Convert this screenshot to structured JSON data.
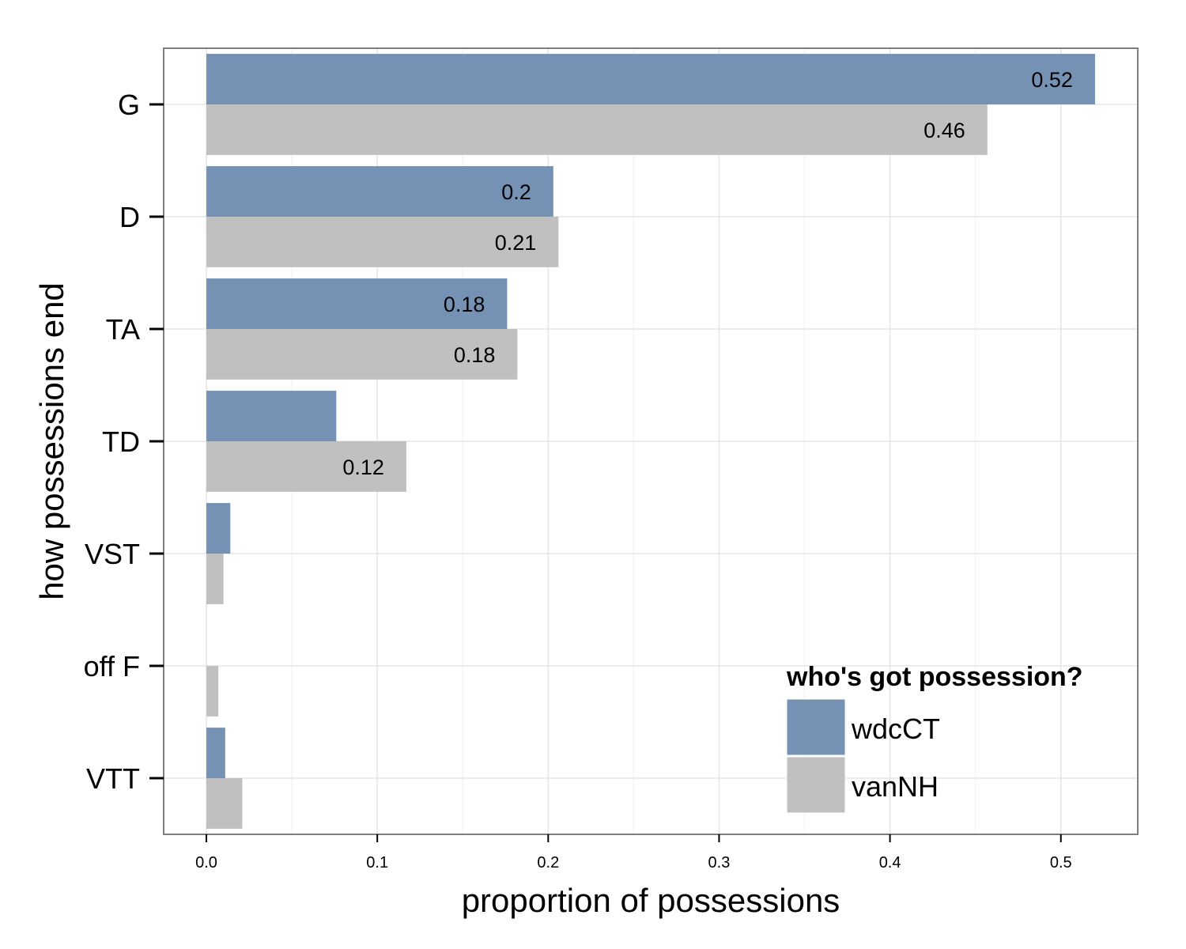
{
  "chart_data": {
    "type": "bar",
    "orientation": "horizontal",
    "categories": [
      "G",
      "D",
      "TA",
      "TD",
      "VST",
      "off F",
      "VTT"
    ],
    "series": [
      {
        "name": "wdcCT",
        "color": "#7592B5",
        "values": [
          0.52,
          0.203,
          0.176,
          0.076,
          0.014,
          0.0,
          0.011
        ]
      },
      {
        "name": "vanNH",
        "color": "#C0C0C0",
        "values": [
          0.457,
          0.206,
          0.182,
          0.117,
          0.01,
          0.007,
          0.021
        ]
      }
    ],
    "data_labels": [
      [
        "0.52",
        "0.46"
      ],
      [
        "0.2",
        "0.21"
      ],
      [
        "0.18",
        "0.18"
      ],
      [
        "",
        "0.12"
      ],
      [
        "",
        ""
      ],
      [
        "",
        ""
      ],
      [
        "",
        ""
      ]
    ],
    "xlabel": "proportion of possessions",
    "ylabel": "how possessions end",
    "xlim": [
      -0.025,
      0.545
    ],
    "xticks": [
      0.0,
      0.1,
      0.2,
      0.3,
      0.4,
      0.5
    ],
    "xtick_labels": [
      "0.0",
      "0.1",
      "0.2",
      "0.3",
      "0.4",
      "0.5"
    ],
    "grid": true,
    "legend": {
      "title": "who's got possession?",
      "placement": "bottom-right",
      "entries": [
        "wdcCT",
        "vanNH"
      ]
    },
    "colors": {
      "panel_border": "#7F7F7F",
      "grid_major": "#E5E5E5",
      "grid_minor": "#F2F2F2"
    }
  }
}
